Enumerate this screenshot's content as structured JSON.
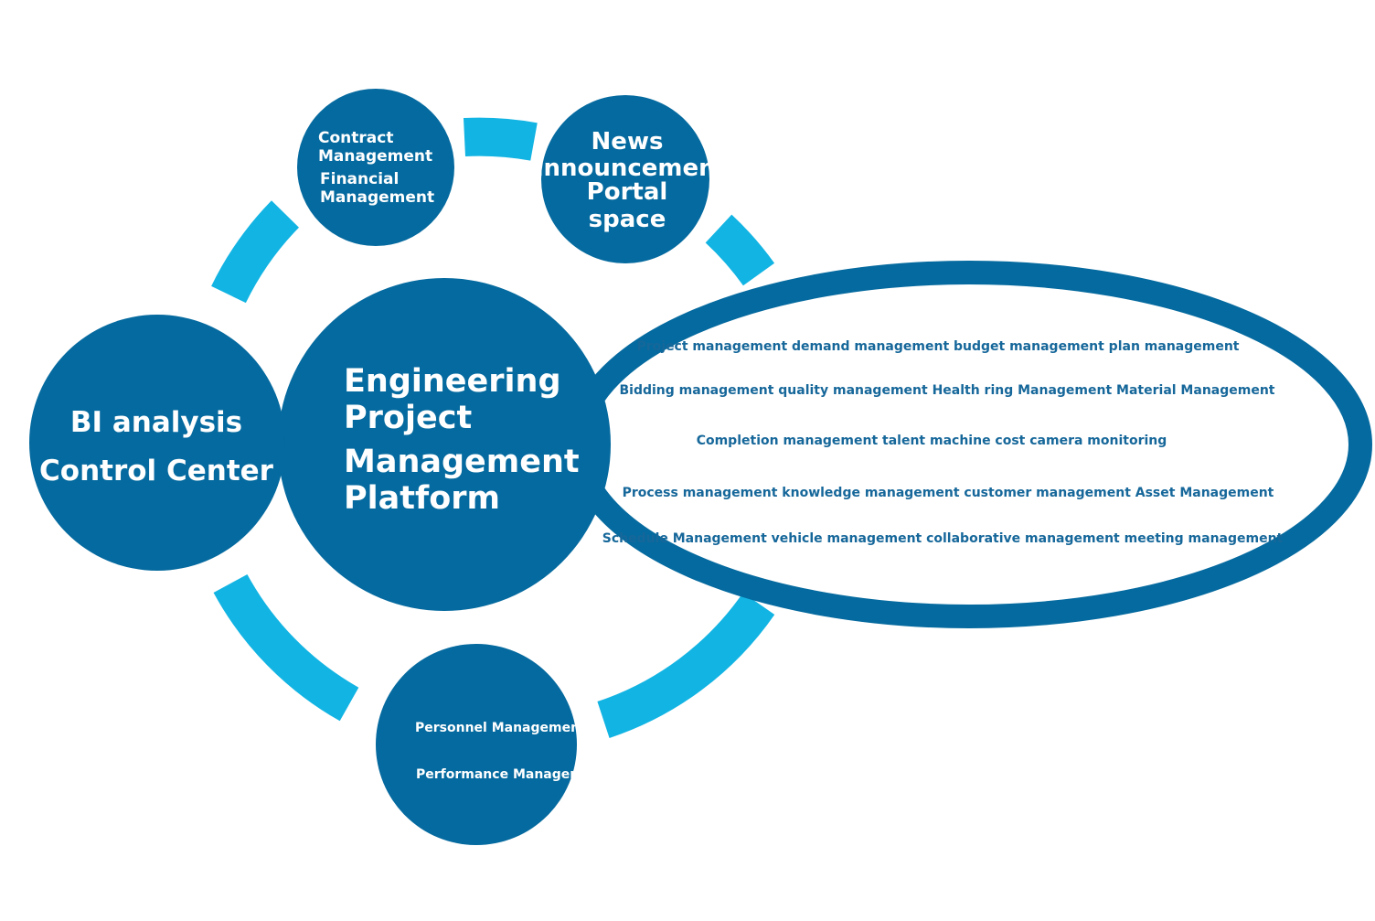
{
  "colors": {
    "node_fill": "#056a9f",
    "ring_arc": "#12b4e3",
    "ellipse_stroke": "#056a9f",
    "ellipse_fill": "#ffffff",
    "module_text": "#16679a",
    "node_text": "#ffffff",
    "background": "#ffffff"
  },
  "center_node": {
    "lines": [
      "Engineering",
      "Project",
      "Management",
      "Platform"
    ]
  },
  "bi_node": {
    "lines": [
      "BI analysis",
      "Control Center"
    ]
  },
  "contract_node": {
    "lines": [
      "Contract",
      "Management",
      "Financial",
      "Management"
    ]
  },
  "news_node": {
    "lines": [
      "News",
      "announcement",
      "Portal",
      "space"
    ]
  },
  "personnel_node": {
    "lines": [
      "Personnel Management",
      "Performance Management"
    ]
  },
  "modules": {
    "rows": [
      "Project management demand management budget management plan management",
      "Bidding management quality management Health ring Management Material Management",
      "Completion management talent machine cost camera monitoring",
      "Process management knowledge management customer management Asset Management",
      "Schedule Management vehicle management collaborative management meeting management"
    ]
  }
}
